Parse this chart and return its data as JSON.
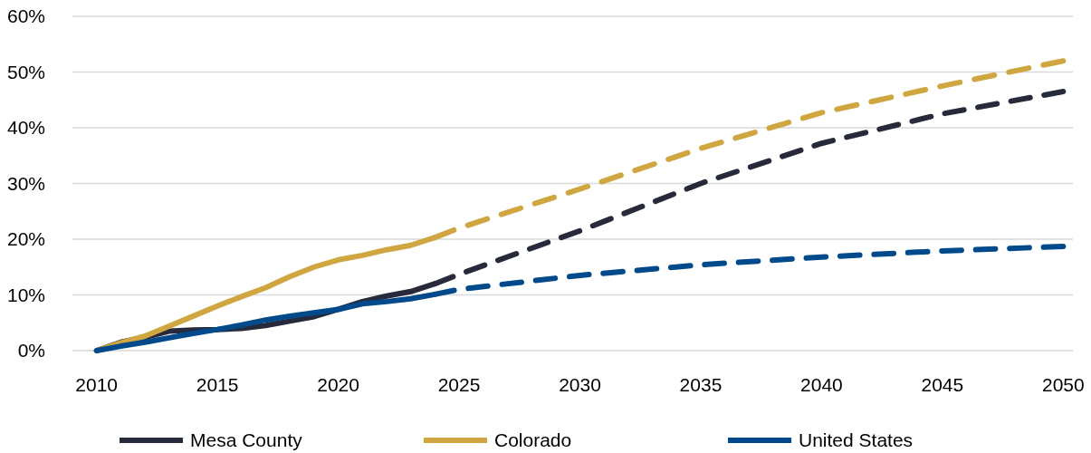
{
  "chart_data": {
    "type": "line",
    "x": [
      2010,
      2011,
      2012,
      2013,
      2014,
      2015,
      2016,
      2017,
      2018,
      2019,
      2020,
      2021,
      2022,
      2023,
      2024
    ],
    "series": [
      {
        "name": "Mesa County",
        "color": "#272a3a",
        "line_style": "solid",
        "values": [
          0,
          1.5,
          2.4,
          3.5,
          3.7,
          3.8,
          4,
          4.5,
          5.3,
          6.1,
          7.4,
          8.8,
          9.8,
          10.6,
          12
        ]
      },
      {
        "name": "Colorado",
        "color": "#cfa640",
        "line_style": "solid",
        "values": [
          0,
          1.4,
          2.6,
          4.4,
          6.2,
          8,
          9.7,
          11.3,
          13.3,
          15,
          16.3,
          17.1,
          18.1,
          18.9,
          20.3
        ]
      },
      {
        "name": "United States",
        "color": "#004a8c",
        "line_style": "solid",
        "values": [
          0,
          0.8,
          1.5,
          2.3,
          3.1,
          3.8,
          4.6,
          5.5,
          6.2,
          6.8,
          7.4,
          8.4,
          8.8,
          9.3,
          10.1
        ]
      },
      {
        "color": "#272a3a",
        "line_style": "dashed",
        "x": [
          2024,
          2025,
          2030,
          2035,
          2040,
          2045,
          2050
        ],
        "values": [
          12,
          13.7,
          21.5,
          30,
          37.2,
          42.5,
          46.5
        ]
      },
      {
        "color": "#cfa640",
        "line_style": "dashed",
        "x": [
          2024,
          2025,
          2030,
          2035,
          2040,
          2045,
          2050
        ],
        "values": [
          20.3,
          22,
          29,
          36.3,
          42.7,
          47.5,
          52
        ]
      },
      {
        "color": "#004a8c",
        "line_style": "dashed",
        "x": [
          2024,
          2025,
          2030,
          2035,
          2040,
          2045,
          2050
        ],
        "values": [
          10.1,
          11,
          13.5,
          15.4,
          16.8,
          17.9,
          18.7
        ]
      }
    ],
    "xlim": [
      2009,
      2050.4
    ],
    "xticks": [
      2010,
      2015,
      2020,
      2025,
      2030,
      2035,
      2040,
      2045,
      2050
    ],
    "ylim": [
      0,
      60
    ],
    "yticks": [
      {
        "value": 0,
        "label": "0%"
      },
      {
        "value": 10,
        "label": "10%"
      },
      {
        "value": 20,
        "label": "20%"
      },
      {
        "value": 30,
        "label": "30%"
      },
      {
        "value": 40,
        "label": "40%"
      },
      {
        "value": 50,
        "label": "50%"
      },
      {
        "value": 60,
        "label": "60%"
      }
    ],
    "grid": "y",
    "legend": "bottom",
    "marker": "none"
  }
}
